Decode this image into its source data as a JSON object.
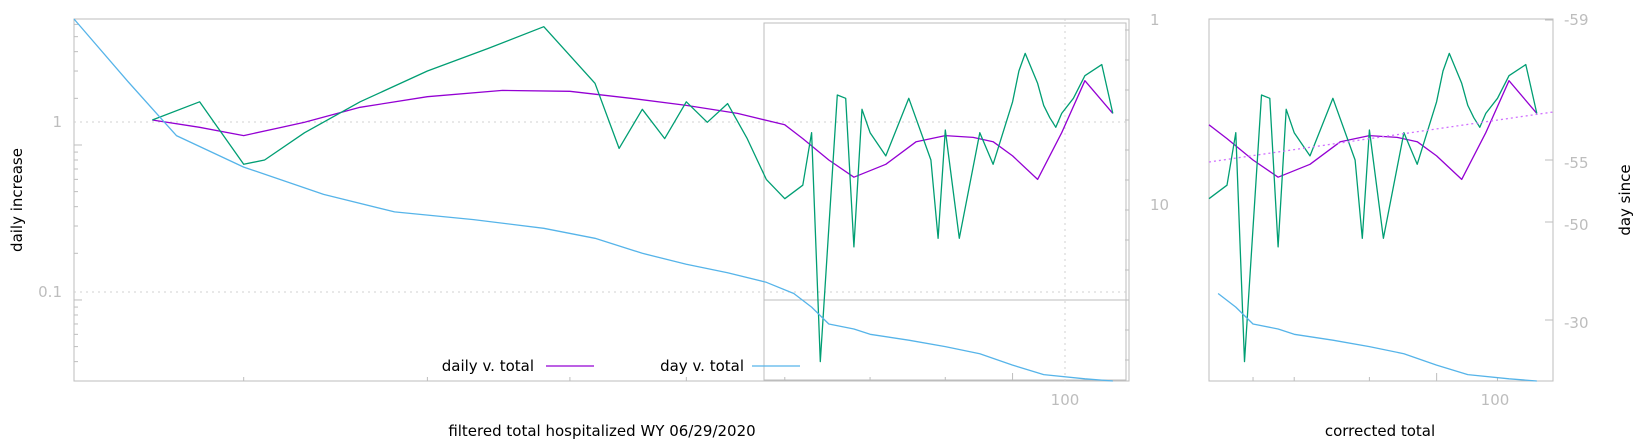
{
  "chart_data": [
    {
      "type": "line",
      "title": "",
      "xlabel": "filtered total hospitalized WY 06/29/2020",
      "ylabel": "daily increase",
      "x_scale": "log",
      "y_scale": "log",
      "xlim": [
        23,
        120
      ],
      "ylim": [
        0.03,
        6.5
      ],
      "x_ticks": [
        100
      ],
      "y_ticks": [
        1,
        0.1
      ],
      "y_tick_labels": [
        "1",
        "0.1"
      ],
      "grid": true,
      "legend_position": "bottom-center",
      "colors": {
        "daily": "#9400d3",
        "raw": "#009e73",
        "day": "#56b4e9"
      },
      "series": [
        {
          "name": "daily v. total",
          "x": [
            26,
            28,
            30,
            33,
            36,
            40,
            45,
            50,
            55,
            60,
            65,
            70,
            72,
            75,
            78,
            82,
            86,
            90,
            94,
            97,
            100,
            104,
            108,
            112,
            117
          ],
          "y": [
            1.45,
            1.3,
            1.15,
            1.4,
            1.75,
            2.05,
            2.25,
            2.22,
            2.0,
            1.8,
            1.6,
            1.35,
            1.1,
            0.8,
            0.62,
            0.75,
            1.05,
            1.15,
            1.12,
            1.05,
            0.85,
            0.6,
            1.2,
            2.6,
            1.6
          ]
        },
        {
          "name": "",
          "x": [
            26,
            28,
            30,
            31,
            33,
            36,
            40,
            44,
            48,
            52,
            54,
            56,
            58,
            60,
            62,
            64,
            66,
            68,
            70,
            72,
            73,
            74,
            76,
            77,
            78,
            79,
            80,
            82,
            85,
            88,
            89,
            90,
            92,
            95,
            97,
            100,
            101,
            102,
            104,
            105,
            106,
            107,
            108,
            110,
            112,
            115,
            117
          ],
          "y": [
            1.45,
            1.9,
            0.75,
            0.8,
            1.2,
            1.9,
            3.0,
            4.2,
            5.8,
            2.5,
            0.95,
            1.7,
            1.1,
            1.9,
            1.4,
            1.85,
            1.1,
            0.6,
            0.45,
            0.55,
            1.2,
            0.04,
            2.1,
            2.0,
            0.22,
            1.7,
            1.2,
            0.85,
            2.0,
            0.8,
            0.25,
            1.25,
            0.25,
            1.2,
            0.75,
            1.9,
            3.0,
            3.9,
            2.5,
            1.8,
            1.5,
            1.3,
            1.6,
            2.0,
            2.8,
            3.3,
            1.6
          ]
        },
        {
          "name": "day v. total",
          "x": [
            23,
            25,
            27,
            30,
            34,
            38,
            43,
            48,
            52,
            56,
            60,
            64,
            68,
            71,
            73,
            75,
            78,
            80,
            85,
            90,
            95,
            100,
            105,
            112,
            117
          ],
          "y": [
            6.5,
            2.6,
            1.15,
            0.72,
            0.48,
            0.37,
            0.33,
            0.29,
            0.25,
            0.2,
            0.17,
            0.15,
            0.13,
            0.11,
            0.09,
            0.07,
            0.065,
            0.06,
            0.055,
            0.05,
            0.045,
            0.038,
            0.033,
            0.031,
            0.03
          ]
        }
      ],
      "y2": {
        "ticks": [
          1,
          10
        ],
        "tick_labels": [
          "1",
          "10"
        ]
      }
    },
    {
      "type": "line",
      "title": "",
      "xlabel": "corrected total",
      "ylabel": "day since",
      "x_scale": "log",
      "xlim": [
        70,
        120
      ],
      "x_ticks": [
        100
      ],
      "y2": {
        "ticks": [
          -59,
          -55,
          -50,
          -30
        ],
        "tick_labels": [
          "-59",
          "-55",
          "-50",
          "-30"
        ]
      },
      "colors": {
        "daily": "#9400d3",
        "raw": "#009e73",
        "day": "#56b4e9",
        "fit": "#d070ff"
      }
    }
  ],
  "legend": {
    "daily": "daily v. total",
    "day": "day v. total"
  },
  "axes": {
    "left_ylabel": "daily increase",
    "left_xlabel": "filtered total hospitalized WY 06/29/2020",
    "right_xlabel": "corrected total",
    "right_ylabel": "day since",
    "tick_1": "1",
    "tick_01": "0.1",
    "tick_100": "100",
    "tick_100b": "100",
    "y2_1": "1",
    "y2_10": "10",
    "r_59": "-59",
    "r_55": "-55",
    "r_50": "-50",
    "r_30": "-30"
  }
}
